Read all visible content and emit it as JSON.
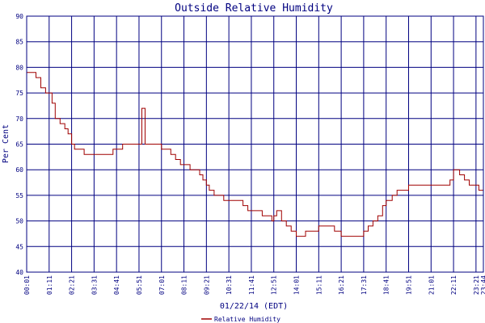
{
  "chart_data": {
    "type": "line",
    "title": "Outside Relative Humidity",
    "xlabel": "01/22/14 (EDT)",
    "ylabel": "Per Cent",
    "ylim": [
      40,
      90
    ],
    "yticks": [
      40,
      45,
      50,
      55,
      60,
      65,
      70,
      75,
      80,
      85,
      90
    ],
    "x_tick_labels": [
      "00:01",
      "01:11",
      "02:21",
      "03:31",
      "04:41",
      "05:51",
      "07:01",
      "08:11",
      "09:21",
      "10:31",
      "11:41",
      "12:51",
      "14:01",
      "15:11",
      "16:21",
      "17:31",
      "18:41",
      "19:51",
      "21:01",
      "22:11",
      "23:21",
      "23:44"
    ],
    "grid": true,
    "legend": "bottom-center",
    "color": "#a00000",
    "grid_color": "#000080",
    "series": [
      {
        "name": "Relative Humidity",
        "x": [
          "00:01",
          "00:15",
          "00:30",
          "00:45",
          "01:00",
          "01:11",
          "01:20",
          "01:30",
          "01:45",
          "02:00",
          "02:10",
          "02:21",
          "02:30",
          "02:45",
          "03:00",
          "03:15",
          "03:31",
          "03:45",
          "04:00",
          "04:15",
          "04:30",
          "04:41",
          "05:00",
          "05:15",
          "05:30",
          "05:45",
          "05:51",
          "06:00",
          "06:10",
          "06:20",
          "06:30",
          "06:45",
          "07:01",
          "07:15",
          "07:30",
          "07:45",
          "08:00",
          "08:11",
          "08:30",
          "08:45",
          "09:00",
          "09:10",
          "09:21",
          "09:30",
          "09:45",
          "10:00",
          "10:15",
          "10:31",
          "10:45",
          "11:00",
          "11:15",
          "11:30",
          "11:41",
          "12:00",
          "12:15",
          "12:30",
          "12:45",
          "12:51",
          "13:00",
          "13:15",
          "13:30",
          "13:45",
          "14:01",
          "14:15",
          "14:30",
          "14:45",
          "15:00",
          "15:11",
          "15:30",
          "15:45",
          "16:00",
          "16:10",
          "16:21",
          "16:45",
          "17:00",
          "17:15",
          "17:31",
          "17:45",
          "18:00",
          "18:15",
          "18:30",
          "18:41",
          "19:00",
          "19:15",
          "19:30",
          "19:51",
          "20:15",
          "20:45",
          "21:01",
          "21:30",
          "21:45",
          "22:00",
          "22:11",
          "22:20",
          "22:30",
          "22:45",
          "23:00",
          "23:21",
          "23:30",
          "23:44"
        ],
        "y": [
          79,
          79,
          78,
          76,
          75,
          75,
          73,
          70,
          69,
          68,
          67,
          65,
          64,
          64,
          63,
          63,
          63,
          63,
          63,
          63,
          64,
          64,
          65,
          65,
          65,
          65,
          65,
          72,
          65,
          65,
          65,
          65,
          64,
          64,
          63,
          62,
          61,
          61,
          60,
          60,
          59,
          58,
          57,
          56,
          55,
          55,
          54,
          54,
          54,
          54,
          53,
          52,
          52,
          52,
          51,
          51,
          50,
          51,
          52,
          50,
          49,
          48,
          47,
          47,
          48,
          48,
          48,
          49,
          49,
          49,
          48,
          48,
          47,
          47,
          47,
          47,
          48,
          49,
          50,
          51,
          53,
          54,
          55,
          56,
          56,
          57,
          57,
          57,
          57,
          57,
          57,
          58,
          60,
          60,
          59,
          58,
          57,
          57,
          56,
          55
        ]
      }
    ]
  }
}
